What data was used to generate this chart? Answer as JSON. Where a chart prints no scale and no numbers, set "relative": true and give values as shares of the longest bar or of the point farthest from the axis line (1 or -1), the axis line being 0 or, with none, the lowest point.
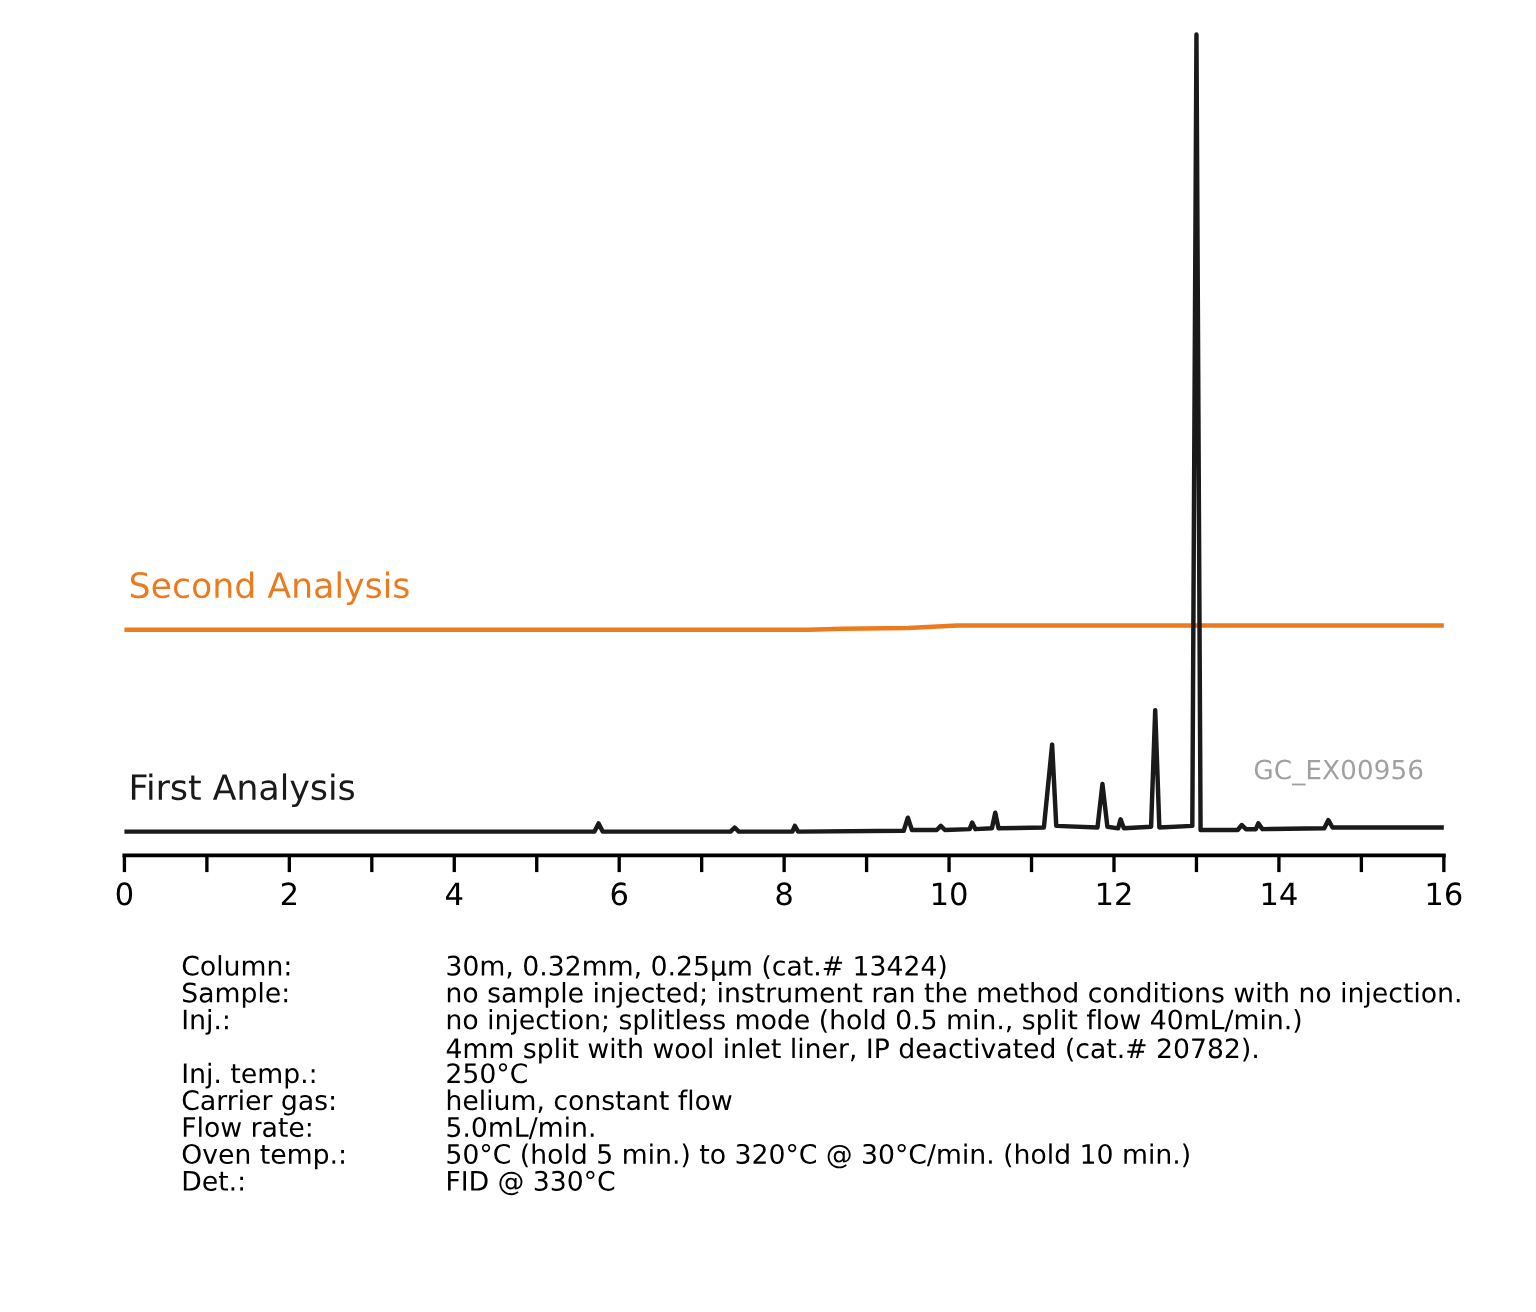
{
  "chart_data": {
    "type": "line",
    "relative": true,
    "legend": false,
    "grid": false,
    "marker": "none",
    "line_style": "solid",
    "xlim": [
      0,
      16
    ],
    "xticks": [
      0,
      {
        "value": 1,
        "label": null
      },
      2,
      {
        "value": 3,
        "label": null
      },
      4,
      {
        "value": 5,
        "label": null
      },
      6,
      {
        "value": 7,
        "label": null
      },
      8,
      {
        "value": 9,
        "label": null
      },
      10,
      {
        "value": 11,
        "label": null
      },
      12,
      {
        "value": 13,
        "label": null
      },
      14,
      {
        "value": 15,
        "label": null
      },
      16
    ],
    "series": [
      {
        "name": "Second Analysis",
        "color": "#ec7b1f",
        "x": [
          0,
          8.3,
          8.7,
          9.5,
          10.1,
          16
        ],
        "values": [
          0.275,
          0.275,
          0.276,
          0.277,
          0.28,
          0.28
        ]
      },
      {
        "name": "First Analysis",
        "color": "#1a1a1a",
        "x": [
          0,
          5.7,
          5.75,
          5.8,
          7.35,
          7.4,
          7.45,
          8.1,
          8.13,
          8.17,
          9.45,
          9.5,
          9.55,
          9.85,
          9.9,
          9.95,
          10.25,
          10.28,
          10.32,
          10.52,
          10.56,
          10.6,
          11.15,
          11.25,
          11.3,
          11.8,
          11.86,
          11.92,
          12.05,
          12.08,
          12.12,
          12.45,
          12.5,
          12.55,
          12.95,
          13.0,
          13.05,
          13.5,
          13.55,
          13.6,
          13.72,
          13.75,
          13.8,
          14.55,
          14.6,
          14.65,
          16
        ],
        "values": [
          0.029,
          0.029,
          0.039,
          0.029,
          0.029,
          0.034,
          0.029,
          0.029,
          0.036,
          0.029,
          0.03,
          0.046,
          0.031,
          0.031,
          0.036,
          0.031,
          0.032,
          0.04,
          0.032,
          0.033,
          0.052,
          0.033,
          0.034,
          0.135,
          0.036,
          0.034,
          0.087,
          0.035,
          0.033,
          0.044,
          0.033,
          0.035,
          0.177,
          0.034,
          0.036,
          1.0,
          0.031,
          0.031,
          0.037,
          0.032,
          0.032,
          0.039,
          0.032,
          0.033,
          0.043,
          0.034,
          0.034
        ]
      }
    ],
    "annotations": [
      "GC_EX00956",
      "Column:",
      "30m, 0.32mm, 0.25µm (cat.# 13424)",
      "Sample:",
      "no sample injected; instrument ran the method conditions with no injection.",
      "Inj.:",
      "no injection; splitless mode (hold 0.5 min., split flow 40mL/min.)\n4mm split with wool inlet liner, IP deactivated (cat.# 20782).",
      "Inj. temp.:",
      "250°C",
      "Carrier gas:",
      "helium, constant flow",
      "Flow rate:",
      "5.0mL/min.",
      "Oven temp.:",
      "50°C (hold 5 min.) to 320°C @ 30°C/min. (hold 10 min.)",
      "Det.:",
      "FID @ 330°C"
    ]
  }
}
